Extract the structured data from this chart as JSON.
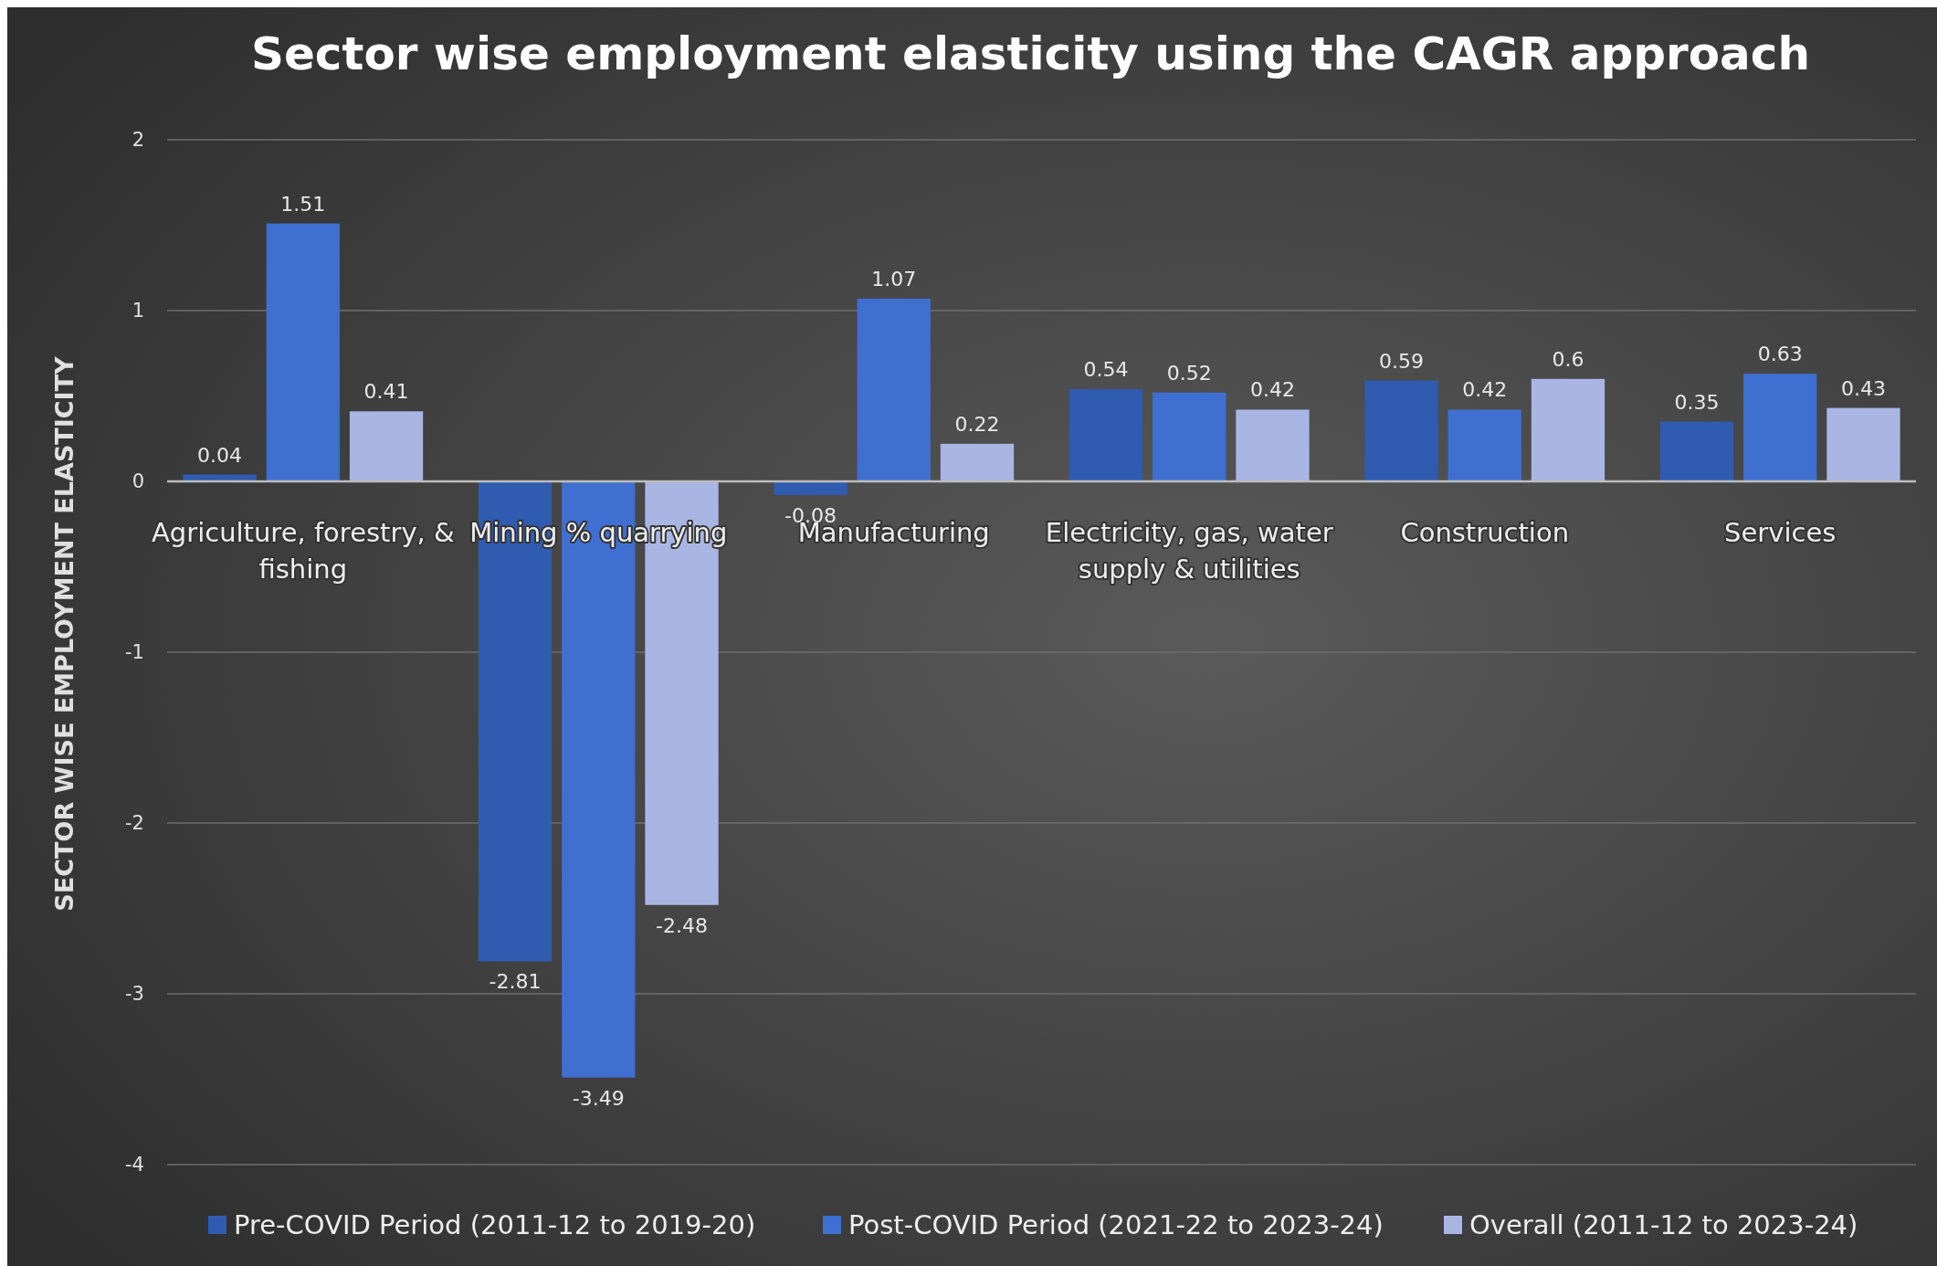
{
  "chart_data": {
    "type": "bar",
    "title": "Sector wise employment elasticity using the CAGR approach",
    "ylabel": "SECTOR WISE EMPLOYMENT ELASTICITY",
    "categories": [
      "Agriculture, forestry, & fishing",
      "Mining % quarrying",
      "Manufacturing",
      "Electricity, gas, water supply & utilities",
      "Construction",
      "Services"
    ],
    "series": [
      {
        "name": "Pre-COVID Period (2011-12 to 2019-20)",
        "color": "#2f5bb0",
        "values": [
          0.04,
          -2.81,
          -0.08,
          0.54,
          0.59,
          0.35
        ]
      },
      {
        "name": "Post-COVID Period (2021-22 to 2023-24)",
        "color": "#3f6fd0",
        "values": [
          1.51,
          -3.49,
          1.07,
          0.52,
          0.42,
          0.63
        ]
      },
      {
        "name": "Overall (2011-12 to 2023-24)",
        "color": "#a9b6e4",
        "values": [
          0.41,
          -2.48,
          0.22,
          0.42,
          0.6,
          0.43
        ]
      }
    ],
    "ylim": [
      -4,
      2
    ],
    "yticks": [
      -4,
      -3,
      -2,
      -1,
      0,
      1,
      2
    ],
    "grid": "y",
    "data_labels": true,
    "legend": "bottom"
  }
}
